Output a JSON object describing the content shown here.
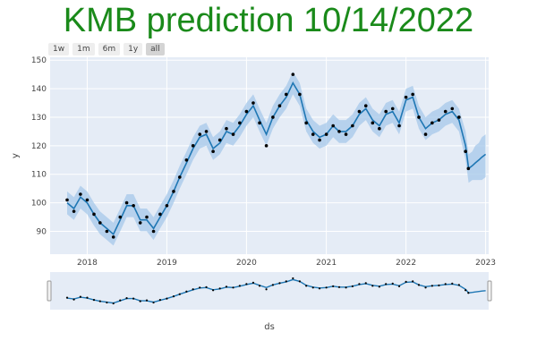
{
  "title": "KMB prediction 10/14/2022",
  "range_buttons": [
    {
      "label": "1w",
      "active": false
    },
    {
      "label": "1m",
      "active": false
    },
    {
      "label": "6m",
      "active": false
    },
    {
      "label": "1y",
      "active": false
    },
    {
      "label": "all",
      "active": true
    }
  ],
  "colors": {
    "title": "#1a8a1a",
    "plot_bg": "#e5ecf6",
    "forecast_line": "#1f77b4",
    "band": "#a6c8ea",
    "observed": "#000000"
  },
  "chart_data": {
    "type": "line",
    "xlabel": "ds",
    "ylabel": "y",
    "xlim": [
      "2017-07-15",
      "2023-01-15"
    ],
    "ylim": [
      82,
      151
    ],
    "y_ticks": [
      90,
      100,
      110,
      120,
      130,
      140,
      150
    ],
    "x_ticks": [
      "2018",
      "2019",
      "2020",
      "2021",
      "2022",
      "2023"
    ],
    "grid": true,
    "series": [
      {
        "role": "observed",
        "x": [
          "2017-10-01",
          "2017-11-01",
          "2017-12-01",
          "2018-01-01",
          "2018-02-01",
          "2018-03-01",
          "2018-04-01",
          "2018-05-01",
          "2018-06-01",
          "2018-07-01",
          "2018-08-01",
          "2018-09-01",
          "2018-10-01",
          "2018-11-01",
          "2018-12-01",
          "2019-01-01",
          "2019-02-01",
          "2019-03-01",
          "2019-04-01",
          "2019-05-01",
          "2019-06-01",
          "2019-07-01",
          "2019-08-01",
          "2019-09-01",
          "2019-10-01",
          "2019-11-01",
          "2019-12-01",
          "2020-01-01",
          "2020-02-01",
          "2020-03-01",
          "2020-04-01",
          "2020-05-01",
          "2020-06-01",
          "2020-07-01",
          "2020-08-01",
          "2020-09-01",
          "2020-10-01",
          "2020-11-01",
          "2020-12-01",
          "2021-01-01",
          "2021-02-01",
          "2021-03-01",
          "2021-04-01",
          "2021-05-01",
          "2021-06-01",
          "2021-07-01",
          "2021-08-01",
          "2021-09-01",
          "2021-10-01",
          "2021-11-01",
          "2021-12-01",
          "2022-01-01",
          "2022-02-01",
          "2022-03-01",
          "2022-04-01",
          "2022-05-01",
          "2022-06-01",
          "2022-07-01",
          "2022-08-01",
          "2022-09-01",
          "2022-10-01",
          "2022-10-14"
        ],
        "y": [
          101,
          97,
          103,
          101,
          96,
          93,
          90,
          88,
          95,
          100,
          99,
          93,
          95,
          90,
          96,
          99,
          104,
          109,
          115,
          120,
          124,
          125,
          118,
          122,
          126,
          124,
          128,
          132,
          135,
          128,
          120,
          130,
          134,
          138,
          145,
          138,
          128,
          124,
          122,
          124,
          127,
          125,
          124,
          127,
          132,
          134,
          128,
          126,
          132,
          133,
          127,
          137,
          138,
          130,
          124,
          128,
          129,
          132,
          133,
          130,
          118,
          112
        ]
      },
      {
        "role": "forecast",
        "x": [
          "2017-10-01",
          "2017-11-01",
          "2017-12-01",
          "2018-01-01",
          "2018-02-01",
          "2018-03-01",
          "2018-04-01",
          "2018-05-01",
          "2018-06-01",
          "2018-07-01",
          "2018-08-01",
          "2018-09-01",
          "2018-10-01",
          "2018-11-01",
          "2018-12-01",
          "2019-01-01",
          "2019-02-01",
          "2019-03-01",
          "2019-04-01",
          "2019-05-01",
          "2019-06-01",
          "2019-07-01",
          "2019-08-01",
          "2019-09-01",
          "2019-10-01",
          "2019-11-01",
          "2019-12-01",
          "2020-01-01",
          "2020-02-01",
          "2020-03-01",
          "2020-04-01",
          "2020-05-01",
          "2020-06-01",
          "2020-07-01",
          "2020-08-01",
          "2020-09-01",
          "2020-10-01",
          "2020-11-01",
          "2020-12-01",
          "2021-01-01",
          "2021-02-01",
          "2021-03-01",
          "2021-04-01",
          "2021-05-01",
          "2021-06-01",
          "2021-07-01",
          "2021-08-01",
          "2021-09-01",
          "2021-10-01",
          "2021-11-01",
          "2021-12-01",
          "2022-01-01",
          "2022-02-01",
          "2022-03-01",
          "2022-04-01",
          "2022-05-01",
          "2022-06-01",
          "2022-07-01",
          "2022-08-01",
          "2022-09-01",
          "2022-10-01",
          "2022-10-15",
          "2022-11-01",
          "2022-11-15",
          "2022-12-01",
          "2022-12-15",
          "2023-01-01"
        ],
        "y": [
          100,
          98,
          102,
          100,
          96,
          93,
          91,
          89,
          94,
          99,
          99,
          94,
          94,
          91,
          95,
          99,
          104,
          109,
          114,
          119,
          123,
          124,
          119,
          121,
          125,
          124,
          127,
          131,
          134,
          129,
          124,
          130,
          134,
          137,
          142,
          138,
          129,
          125,
          123,
          124,
          127,
          125,
          125,
          127,
          131,
          133,
          129,
          127,
          131,
          132,
          128,
          136,
          137,
          130,
          126,
          128,
          129,
          131,
          132,
          129,
          120,
          112,
          113,
          114,
          115,
          116,
          117
        ],
        "lower": [
          96,
          94,
          98,
          96,
          92,
          89,
          87,
          85,
          90,
          95,
          95,
          90,
          90,
          87,
          91,
          95,
          100,
          105,
          110,
          115,
          119,
          120,
          115,
          117,
          121,
          120,
          123,
          127,
          130,
          125,
          120,
          126,
          130,
          133,
          138,
          134,
          125,
          121,
          119,
          120,
          123,
          121,
          121,
          123,
          127,
          129,
          125,
          123,
          127,
          128,
          124,
          132,
          133,
          126,
          122,
          124,
          125,
          127,
          128,
          125,
          115,
          107,
          108,
          108,
          108,
          108,
          109
        ],
        "upper": [
          104,
          102,
          106,
          104,
          100,
          97,
          95,
          93,
          98,
          103,
          103,
          98,
          98,
          95,
          99,
          103,
          108,
          113,
          118,
          123,
          127,
          128,
          123,
          125,
          129,
          128,
          131,
          135,
          138,
          133,
          128,
          134,
          138,
          141,
          146,
          142,
          133,
          129,
          127,
          128,
          131,
          129,
          129,
          131,
          135,
          137,
          133,
          131,
          135,
          136,
          132,
          140,
          141,
          134,
          130,
          132,
          133,
          135,
          136,
          133,
          125,
          117,
          118,
          120,
          121,
          123,
          124
        ]
      }
    ],
    "range_slider": true
  }
}
